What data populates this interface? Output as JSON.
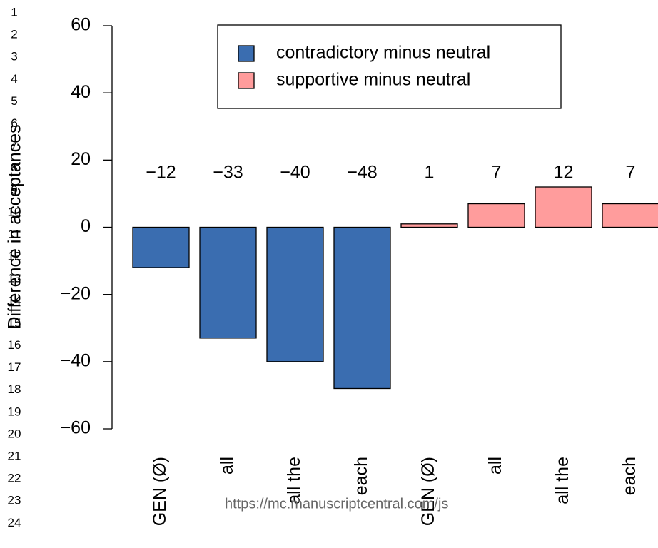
{
  "chart_data": {
    "type": "bar",
    "ylabel": "Difference in acceptances",
    "categories": [
      "GEN (Ø)",
      "all",
      "all the",
      "each",
      "GEN (Ø)",
      "all",
      "all the",
      "each"
    ],
    "series": [
      {
        "name": "contradictory minus neutral",
        "color": "#3a6db0",
        "values": [
          -12,
          -33,
          -40,
          -48,
          null,
          null,
          null,
          null
        ],
        "value_labels": [
          "−12",
          "−33",
          "−40",
          "−48",
          null,
          null,
          null,
          null
        ]
      },
      {
        "name": "supportive minus neutral",
        "color": "#ff9c9c",
        "values": [
          null,
          null,
          null,
          null,
          1,
          7,
          12,
          7
        ],
        "value_labels": [
          null,
          null,
          null,
          null,
          "1",
          "7",
          "12",
          "7"
        ]
      }
    ],
    "ylim": [
      -60,
      60
    ],
    "yticks": [
      {
        "value": -60,
        "label": "−60"
      },
      {
        "value": -40,
        "label": "−40"
      },
      {
        "value": -20,
        "label": "−20"
      },
      0,
      20,
      40,
      60
    ],
    "legend": "top-right"
  },
  "line_numbers": [
    1,
    2,
    3,
    4,
    5,
    6,
    7,
    8,
    9,
    10,
    11,
    12,
    13,
    14,
    15,
    16,
    17,
    18,
    19,
    20,
    21,
    22,
    23,
    24
  ],
  "watermark": "https://mc.manuscriptcentral.com/js"
}
